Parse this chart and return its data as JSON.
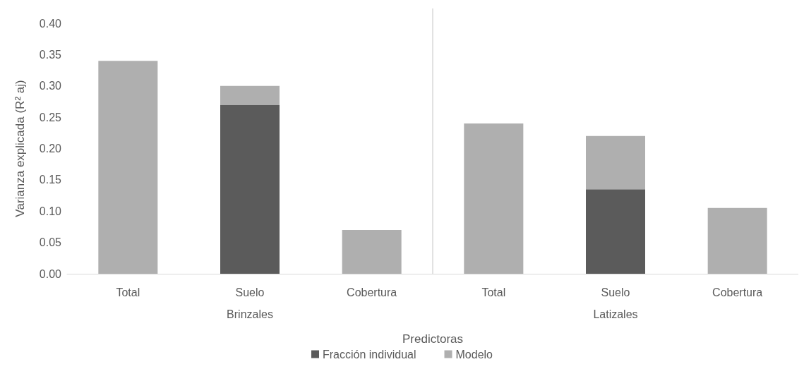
{
  "chart_data": {
    "type": "bar",
    "stacked": true,
    "xlabel": "Predictoras",
    "ylabel": "Varianza explicada (R² aj)",
    "categories": [
      "Total",
      "Suelo",
      "Cobertura",
      "Total",
      "Suelo",
      "Cobertura"
    ],
    "series": [
      {
        "name": "Fracción individual",
        "color": "#5b5b5b",
        "values": [
          null,
          0.27,
          null,
          null,
          0.135,
          null
        ]
      },
      {
        "name": "Modelo",
        "color": "#afafaf",
        "values": [
          0.34,
          0.03,
          0.07,
          0.24,
          0.085,
          0.105
        ]
      }
    ],
    "annotations": [
      "Brinzales",
      "Latizales"
    ],
    "ylim": [
      0,
      0.4
    ],
    "yticks": [
      {
        "value": 0,
        "label": "0.00"
      },
      {
        "value": 0.05,
        "label": "0.05"
      },
      {
        "value": 0.1,
        "label": "0.10"
      },
      {
        "value": 0.15,
        "label": "0.15"
      },
      {
        "value": 0.2,
        "label": "0.20"
      },
      {
        "value": 0.25,
        "label": "0.25"
      },
      {
        "value": 0.3,
        "label": "0.30"
      },
      {
        "value": 0.35,
        "label": "0.35"
      },
      {
        "value": 0.4,
        "label": "0.40"
      }
    ],
    "grid": false,
    "legend": "bottom"
  }
}
